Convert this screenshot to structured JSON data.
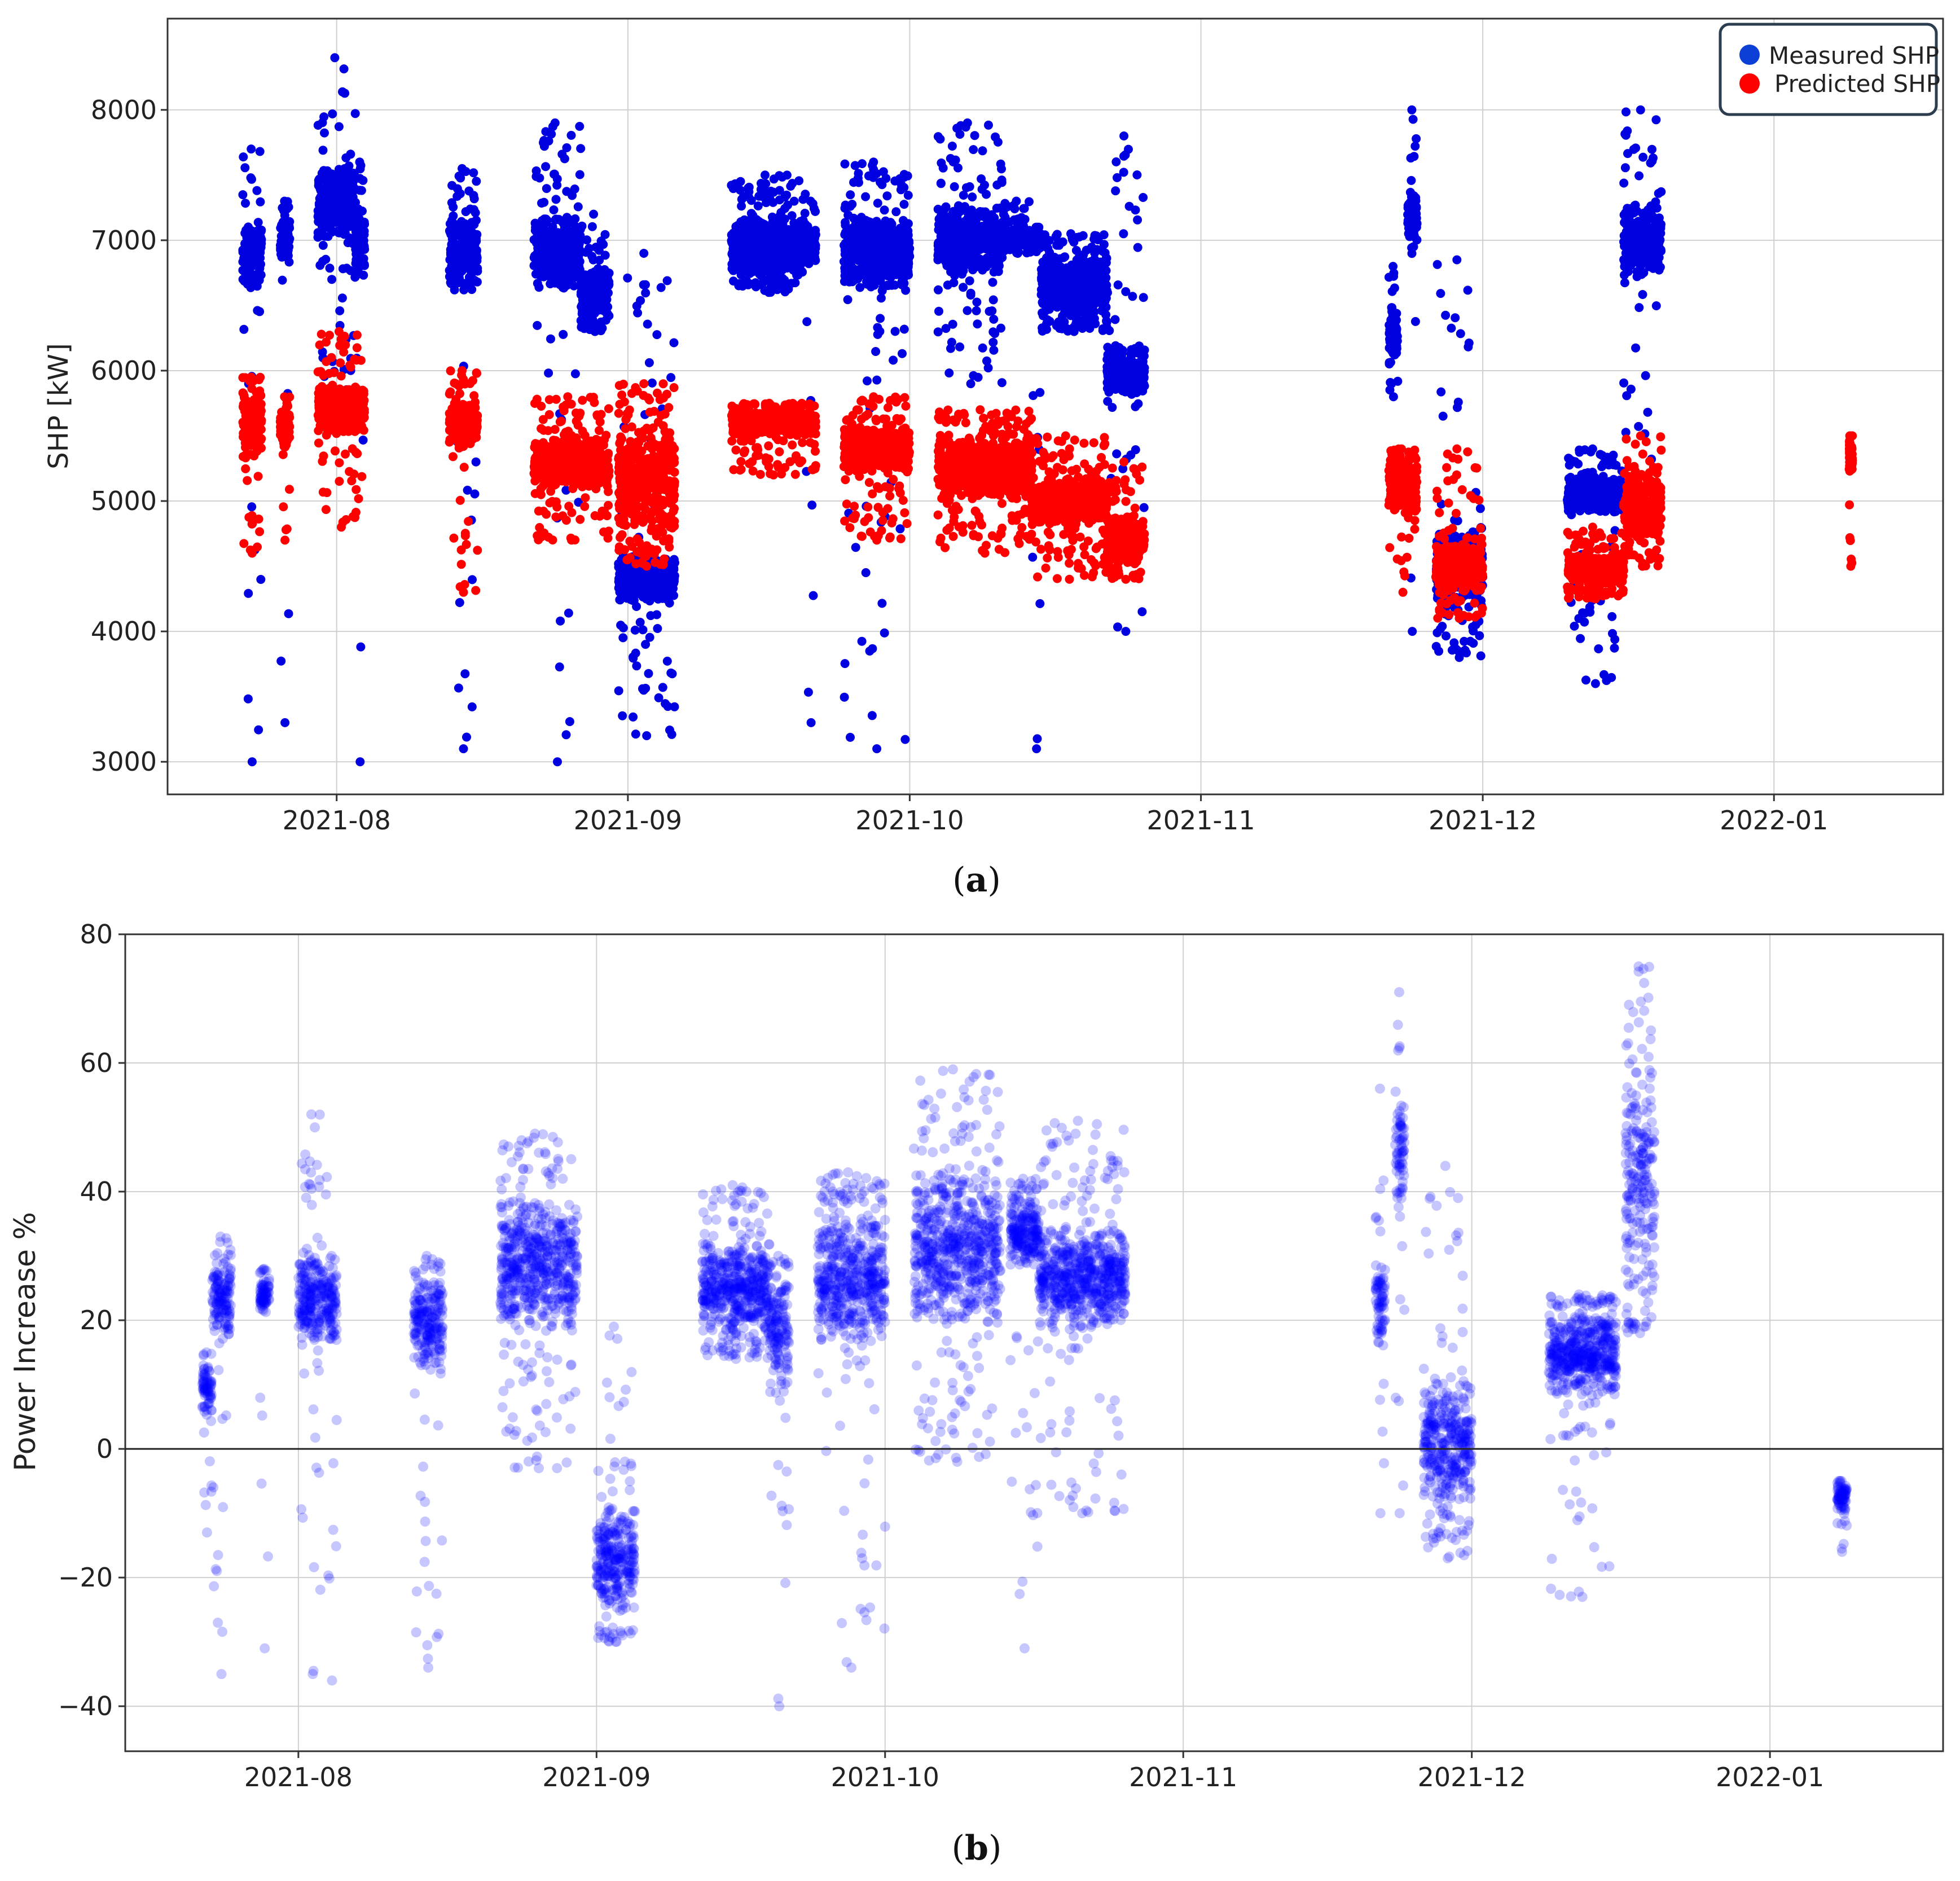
{
  "chart_data": [
    {
      "type": "scatter",
      "panel": "a",
      "caption": "(a)",
      "bold": "a",
      "xlabel": "",
      "ylabel": "SHP [kW]",
      "xlim": [
        "2021-07-14",
        "2022-01-19"
      ],
      "ylim": [
        2750,
        8700
      ],
      "grid": true,
      "legend_position": "top-right",
      "x_ticks": [
        {
          "date": "2021-08-01",
          "label": "2021-08"
        },
        {
          "date": "2021-09-01",
          "label": "2021-09"
        },
        {
          "date": "2021-10-01",
          "label": "2021-10"
        },
        {
          "date": "2021-11-01",
          "label": "2021-11"
        },
        {
          "date": "2021-12-01",
          "label": "2021-12"
        },
        {
          "date": "2022-01-01",
          "label": "2022-01"
        }
      ],
      "y_ticks": [
        {
          "value": 3000,
          "label": "3000"
        },
        {
          "value": 4000,
          "label": "4000"
        },
        {
          "value": 5000,
          "label": "5000"
        },
        {
          "value": 6000,
          "label": "6000"
        },
        {
          "value": 7000,
          "label": "7000"
        },
        {
          "value": 8000,
          "label": "8000"
        }
      ],
      "series": [
        {
          "name": "Measured SHP",
          "color": "#0000e0",
          "opacity": 1,
          "clusters": [
            {
              "start": "2021-07-22",
              "end": "2021-07-24",
              "lo": 6600,
              "hi": 7200,
              "min": 3000,
              "max": 7700
            },
            {
              "start": "2021-07-26",
              "end": "2021-07-27",
              "lo": 6800,
              "hi": 7200,
              "min": 3300,
              "max": 7300
            },
            {
              "start": "2021-07-30",
              "end": "2021-08-03",
              "lo": 7000,
              "hi": 7600,
              "min": 5800,
              "max": 8400
            },
            {
              "start": "2021-08-03",
              "end": "2021-08-04",
              "lo": 6700,
              "hi": 7300,
              "min": 3000,
              "max": 7600
            },
            {
              "start": "2021-08-13",
              "end": "2021-08-16",
              "lo": 6600,
              "hi": 7200,
              "min": 3100,
              "max": 7550
            },
            {
              "start": "2021-08-22",
              "end": "2021-08-27",
              "lo": 6600,
              "hi": 7200,
              "min": 3000,
              "max": 7900
            },
            {
              "start": "2021-08-27",
              "end": "2021-08-30",
              "lo": 6400,
              "hi": 6800,
              "min": 6300,
              "max": 7200
            },
            {
              "start": "2021-08-31",
              "end": "2021-09-06",
              "lo": 4200,
              "hi": 4600,
              "min": 3200,
              "max": 6900
            },
            {
              "start": "2021-09-12",
              "end": "2021-09-20",
              "lo": 6700,
              "hi": 7200,
              "min": 6600,
              "max": 7500
            },
            {
              "start": "2021-09-20",
              "end": "2021-09-21",
              "lo": 6800,
              "hi": 7100,
              "min": 3300,
              "max": 7300
            },
            {
              "start": "2021-09-24",
              "end": "2021-10-01",
              "lo": 6600,
              "hi": 7200,
              "min": 3100,
              "max": 7600
            },
            {
              "start": "2021-10-04",
              "end": "2021-10-11",
              "lo": 6700,
              "hi": 7300,
              "min": 5900,
              "max": 7900
            },
            {
              "start": "2021-10-11",
              "end": "2021-10-14",
              "lo": 6950,
              "hi": 7100,
              "min": 6900,
              "max": 7300
            },
            {
              "start": "2021-10-14",
              "end": "2021-10-15",
              "lo": 6900,
              "hi": 7100,
              "min": 3100,
              "max": 7100
            },
            {
              "start": "2021-10-15",
              "end": "2021-10-22",
              "lo": 6400,
              "hi": 6900,
              "min": 6300,
              "max": 7050
            },
            {
              "start": "2021-10-22",
              "end": "2021-10-26",
              "lo": 5800,
              "hi": 6200,
              "min": 4000,
              "max": 7800
            },
            {
              "start": "2021-11-21",
              "end": "2021-11-22",
              "lo": 6000,
              "hi": 6600,
              "min": 5800,
              "max": 6800
            },
            {
              "start": "2021-11-23",
              "end": "2021-11-24",
              "lo": 6900,
              "hi": 7400,
              "min": 4000,
              "max": 8000
            },
            {
              "start": "2021-11-26",
              "end": "2021-12-01",
              "lo": 4200,
              "hi": 4800,
              "min": 3800,
              "max": 6850
            },
            {
              "start": "2021-12-10",
              "end": "2021-12-16",
              "lo": 4900,
              "hi": 5200,
              "min": 3600,
              "max": 5400
            },
            {
              "start": "2021-12-16",
              "end": "2021-12-20",
              "lo": 6700,
              "hi": 7300,
              "min": 4500,
              "max": 8000
            }
          ]
        },
        {
          "name": "Predicted SHP",
          "color": "#ff0000",
          "opacity": 1,
          "clusters": [
            {
              "start": "2021-07-22",
              "end": "2021-07-24",
              "lo": 5300,
              "hi": 5900,
              "min": 4600,
              "max": 5950
            },
            {
              "start": "2021-07-26",
              "end": "2021-07-27",
              "lo": 5400,
              "hi": 5700,
              "min": 4700,
              "max": 5800
            },
            {
              "start": "2021-07-30",
              "end": "2021-08-04",
              "lo": 5500,
              "hi": 5900,
              "min": 4800,
              "max": 6300
            },
            {
              "start": "2021-08-13",
              "end": "2021-08-16",
              "lo": 5400,
              "hi": 5800,
              "min": 4300,
              "max": 6000
            },
            {
              "start": "2021-08-22",
              "end": "2021-08-30",
              "lo": 5100,
              "hi": 5500,
              "min": 4700,
              "max": 5800
            },
            {
              "start": "2021-08-31",
              "end": "2021-09-06",
              "lo": 4700,
              "hi": 5600,
              "min": 4500,
              "max": 5900
            },
            {
              "start": "2021-09-12",
              "end": "2021-09-21",
              "lo": 5500,
              "hi": 5700,
              "min": 5200,
              "max": 5750
            },
            {
              "start": "2021-09-24",
              "end": "2021-10-01",
              "lo": 5200,
              "hi": 5600,
              "min": 4700,
              "max": 5800
            },
            {
              "start": "2021-10-04",
              "end": "2021-10-14",
              "lo": 5000,
              "hi": 5500,
              "min": 4600,
              "max": 5700
            },
            {
              "start": "2021-10-14",
              "end": "2021-10-22",
              "lo": 4800,
              "hi": 5200,
              "min": 4400,
              "max": 5500
            },
            {
              "start": "2021-10-22",
              "end": "2021-10-26",
              "lo": 4500,
              "hi": 4900,
              "min": 4400,
              "max": 5300
            },
            {
              "start": "2021-11-21",
              "end": "2021-11-24",
              "lo": 4900,
              "hi": 5300,
              "min": 4300,
              "max": 5400
            },
            {
              "start": "2021-11-26",
              "end": "2021-12-01",
              "lo": 4300,
              "hi": 4700,
              "min": 4100,
              "max": 5400
            },
            {
              "start": "2021-12-10",
              "end": "2021-12-16",
              "lo": 4350,
              "hi": 4600,
              "min": 4250,
              "max": 4800
            },
            {
              "start": "2021-12-16",
              "end": "2021-12-20",
              "lo": 4700,
              "hi": 5200,
              "min": 4500,
              "max": 5500
            },
            {
              "start": "2022-01-09",
              "end": "2022-01-09",
              "lo": 5200,
              "hi": 5500,
              "min": 4500,
              "max": 5500
            }
          ]
        }
      ]
    },
    {
      "type": "scatter",
      "panel": "b",
      "caption": "(b)",
      "bold": "b",
      "xlabel": "",
      "ylabel": "Power Increase %",
      "xlim": [
        "2021-07-14",
        "2022-01-19"
      ],
      "ylim": [
        -47,
        80
      ],
      "grid": true,
      "zero_line": 0,
      "x_ticks": [
        {
          "date": "2021-08-01",
          "label": "2021-08"
        },
        {
          "date": "2021-09-01",
          "label": "2021-09"
        },
        {
          "date": "2021-10-01",
          "label": "2021-10"
        },
        {
          "date": "2021-11-01",
          "label": "2021-11"
        },
        {
          "date": "2021-12-01",
          "label": "2021-12"
        },
        {
          "date": "2022-01-01",
          "label": "2022-01"
        }
      ],
      "y_ticks": [
        {
          "value": -40,
          "label": "−40"
        },
        {
          "value": -20,
          "label": "−20"
        },
        {
          "value": 0,
          "label": "0"
        },
        {
          "value": 20,
          "label": "20"
        },
        {
          "value": 40,
          "label": "40"
        },
        {
          "value": 60,
          "label": "60"
        },
        {
          "value": 80,
          "label": "80"
        }
      ],
      "series": [
        {
          "name": "Power Increase %",
          "color": "#0000ff",
          "opacity": 0.22,
          "clusters": [
            {
              "start": "2021-07-22",
              "end": "2021-07-23",
              "lo": 5,
              "hi": 14,
              "min": -13,
              "max": 15
            },
            {
              "start": "2021-07-23",
              "end": "2021-07-25",
              "lo": 17,
              "hi": 30,
              "min": -35,
              "max": 33
            },
            {
              "start": "2021-07-28",
              "end": "2021-07-29",
              "lo": 21,
              "hi": 27,
              "min": -31,
              "max": 28
            },
            {
              "start": "2021-08-01",
              "end": "2021-08-04",
              "lo": 15,
              "hi": 32,
              "min": -35,
              "max": 52
            },
            {
              "start": "2021-08-04",
              "end": "2021-08-05",
              "lo": 15,
              "hi": 28,
              "min": -36,
              "max": 30
            },
            {
              "start": "2021-08-13",
              "end": "2021-08-16",
              "lo": 12,
              "hi": 27,
              "min": -34,
              "max": 30
            },
            {
              "start": "2021-08-22",
              "end": "2021-08-30",
              "lo": 17,
              "hi": 40,
              "min": -3,
              "max": 49
            },
            {
              "start": "2021-09-01",
              "end": "2021-09-05",
              "lo": -27,
              "hi": -8,
              "min": -30,
              "max": 19
            },
            {
              "start": "2021-09-12",
              "end": "2021-09-19",
              "lo": 17,
              "hi": 33,
              "min": 14,
              "max": 41
            },
            {
              "start": "2021-09-19",
              "end": "2021-09-21",
              "lo": 8,
              "hi": 28,
              "min": -40,
              "max": 30
            },
            {
              "start": "2021-09-24",
              "end": "2021-10-01",
              "lo": 15,
              "hi": 38,
              "min": -34,
              "max": 43
            },
            {
              "start": "2021-10-04",
              "end": "2021-10-13",
              "lo": 18,
              "hi": 45,
              "min": -2,
              "max": 59
            },
            {
              "start": "2021-10-14",
              "end": "2021-10-17",
              "lo": 28,
              "hi": 40,
              "min": -31,
              "max": 42
            },
            {
              "start": "2021-10-17",
              "end": "2021-10-26",
              "lo": 18,
              "hi": 35,
              "min": -10,
              "max": 51
            },
            {
              "start": "2021-11-21",
              "end": "2021-11-22",
              "lo": 15,
              "hi": 30,
              "min": -10,
              "max": 56
            },
            {
              "start": "2021-11-23",
              "end": "2021-11-24",
              "lo": 35,
              "hi": 58,
              "min": -10,
              "max": 71
            },
            {
              "start": "2021-11-26",
              "end": "2021-12-01",
              "lo": -10,
              "hi": 12,
              "min": -17,
              "max": 44
            },
            {
              "start": "2021-12-09",
              "end": "2021-12-16",
              "lo": 8,
              "hi": 22,
              "min": -23,
              "max": 24
            },
            {
              "start": "2021-12-17",
              "end": "2021-12-20",
              "lo": 20,
              "hi": 62,
              "min": 18,
              "max": 75
            },
            {
              "start": "2022-01-08",
              "end": "2022-01-09",
              "lo": -10,
              "hi": -5,
              "min": -16,
              "max": -5
            }
          ]
        }
      ]
    }
  ],
  "legend": {
    "items": [
      {
        "label": "Measured SHP",
        "color": "#0b3fd6"
      },
      {
        "label": "Predicted SHP",
        "color": "#ff0000"
      }
    ],
    "border_color": "#2b3d4f"
  }
}
